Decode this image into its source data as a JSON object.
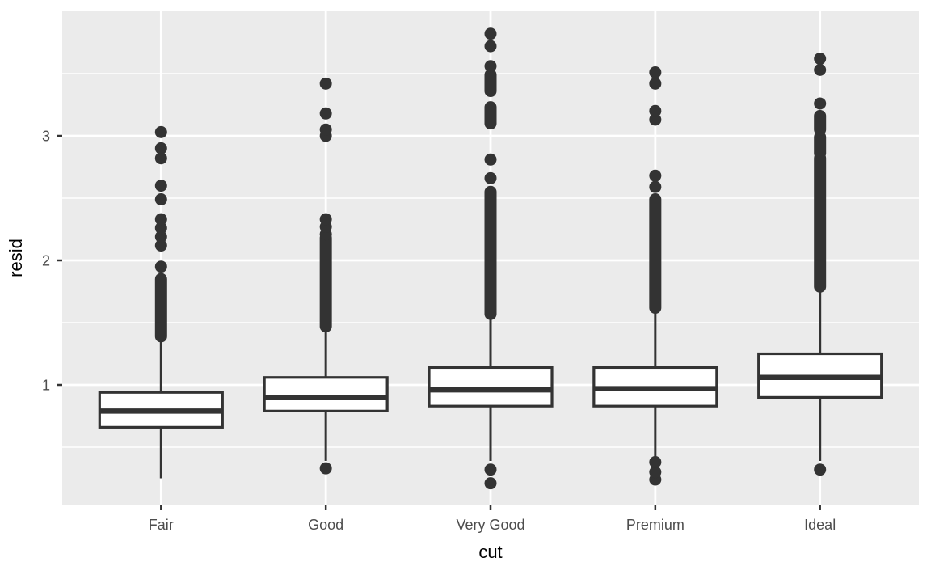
{
  "chart_data": {
    "type": "boxplot",
    "title": "",
    "xlabel": "cut",
    "ylabel": "resid",
    "legend": "none",
    "grid": "on",
    "categories": [
      "Fair",
      "Good",
      "Very Good",
      "Premium",
      "Ideal"
    ],
    "y_axis": {
      "tick_labels": [
        "1",
        "2",
        "3"
      ],
      "ticks": [
        1,
        2,
        3
      ],
      "minor_ticks": [
        0.5,
        1.5,
        2.5,
        3.5
      ],
      "range": [
        0.04,
        4.0
      ]
    },
    "boxes": [
      {
        "category": "Fair",
        "lower_whisker": 0.25,
        "q1": 0.66,
        "median": 0.79,
        "q3": 0.94,
        "upper_whisker": 1.39,
        "outlier_runs_high": [
          [
            1.39,
            1.85
          ]
        ],
        "outliers_high": [
          1.95,
          2.12,
          2.19,
          2.26,
          2.33,
          2.49,
          2.6,
          2.82,
          2.9,
          3.03
        ],
        "outliers_low": []
      },
      {
        "category": "Good",
        "lower_whisker": 0.39,
        "q1": 0.79,
        "median": 0.9,
        "q3": 1.06,
        "upper_whisker": 1.47,
        "outlier_runs_high": [
          [
            1.47,
            2.18
          ]
        ],
        "outliers_high": [
          2.21,
          2.27,
          2.33,
          3.0,
          3.05,
          3.18,
          3.42
        ],
        "outliers_low": [
          0.33
        ]
      },
      {
        "category": "Very Good",
        "lower_whisker": 0.39,
        "q1": 0.83,
        "median": 0.96,
        "q3": 1.14,
        "upper_whisker": 1.57,
        "outlier_runs_high": [
          [
            1.57,
            2.55
          ],
          [
            3.1,
            3.23
          ],
          [
            3.36,
            3.49
          ]
        ],
        "outliers_high": [
          2.66,
          2.81,
          3.56,
          3.72,
          3.82
        ],
        "outliers_low": [
          0.21,
          0.32
        ]
      },
      {
        "category": "Premium",
        "lower_whisker": 0.4,
        "q1": 0.83,
        "median": 0.97,
        "q3": 1.14,
        "upper_whisker": 1.62,
        "outlier_runs_high": [
          [
            1.62,
            2.49
          ]
        ],
        "outliers_high": [
          2.59,
          2.68,
          3.13,
          3.2,
          3.42,
          3.51
        ],
        "outliers_low": [
          0.24,
          0.3,
          0.38
        ]
      },
      {
        "category": "Ideal",
        "lower_whisker": 0.39,
        "q1": 0.9,
        "median": 1.06,
        "q3": 1.25,
        "upper_whisker": 1.79,
        "outlier_runs_high": [
          [
            1.79,
            2.82
          ],
          [
            2.86,
            2.99
          ],
          [
            3.05,
            3.16
          ]
        ],
        "outliers_high": [
          3.26,
          3.53,
          3.62
        ],
        "outliers_low": [
          0.32
        ]
      }
    ],
    "style": {
      "figure_bg": "#FFFFFF",
      "panel_bg": "#EBEBEB",
      "grid_color": "#FFFFFF",
      "box_stroke": "#333333",
      "box_fill": "#FFFFFF",
      "outlier_color": "#333333",
      "tick_color": "#333333",
      "axis_text_color": "#4D4D4D",
      "axis_title_color": "#000000"
    }
  }
}
